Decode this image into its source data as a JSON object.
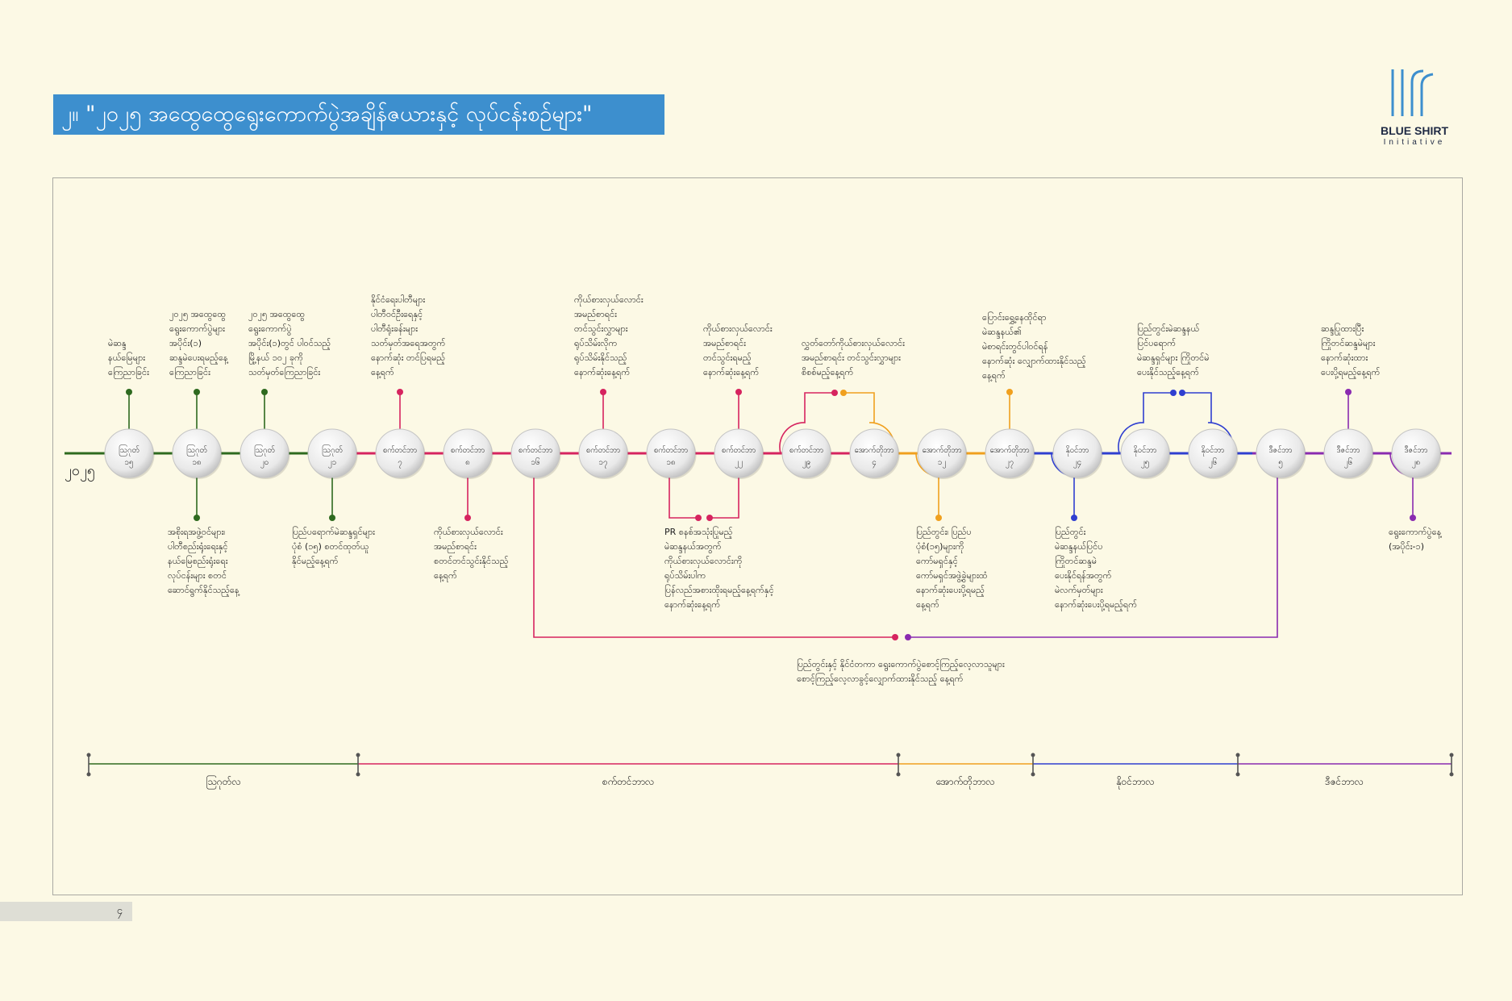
{
  "title": "၂။ \"၂၀၂၅ အထွေထွေရွေးကောက်ပွဲအချိန်ဇယားနှင့် လုပ်ငန်းစဉ်များ\"",
  "logo": {
    "name": "BLUE SHIRT",
    "sub": "Initiative"
  },
  "page_number": "၄",
  "start_label": "၂၀၂၅",
  "colors": {
    "july": "#2e6a1f",
    "august": "#d6245f",
    "september": "#f0a01e",
    "october": "#2f3fd0",
    "december": "#8a2bb0"
  },
  "nodes": [
    {
      "label": "ဩဂုတ်",
      "day": "၁၅",
      "color": "july"
    },
    {
      "label": "ဩဂုတ်",
      "day": "၁၈",
      "color": "july"
    },
    {
      "label": "ဩဂုတ်",
      "day": "၂၀",
      "color": "july"
    },
    {
      "label": "ဩဂုတ်",
      "day": "၂၁",
      "color": "july"
    },
    {
      "label": "စက်တင်ဘာ",
      "day": "၇",
      "color": "august"
    },
    {
      "label": "စက်တင်ဘာ",
      "day": "၈",
      "color": "august"
    },
    {
      "label": "စက်တင်ဘာ",
      "day": "၁၆",
      "color": "august"
    },
    {
      "label": "စက်တင်ဘာ",
      "day": "၁၇",
      "color": "august"
    },
    {
      "label": "စက်တင်ဘာ",
      "day": "၁၈",
      "color": "august"
    },
    {
      "label": "စက်တင်ဘာ",
      "day": "၂၂",
      "color": "august"
    },
    {
      "label": "စက်တင်ဘာ",
      "day": "၂၉",
      "color": "august"
    },
    {
      "label": "အောက်တိုဘာ",
      "day": "၄",
      "color": "september"
    },
    {
      "label": "အောက်တိုဘာ",
      "day": "၁၂",
      "color": "september"
    },
    {
      "label": "အောက်တိုဘာ",
      "day": "၂၇",
      "color": "september"
    },
    {
      "label": "နိုဝင်ဘာ",
      "day": "၂၄",
      "color": "october"
    },
    {
      "label": "နိုဝင်ဘာ",
      "day": "၂၅",
      "color": "october"
    },
    {
      "label": "နိုဝင်ဘာ",
      "day": "၂၆",
      "color": "october"
    },
    {
      "label": "ဒီဇင်ဘာ",
      "day": "၅",
      "color": "december"
    },
    {
      "label": "ဒီဇင်ဘာ",
      "day": "၂၆",
      "color": "december"
    },
    {
      "label": "ဒီဇင်ဘာ",
      "day": "၂၈",
      "color": "december"
    }
  ],
  "annotations": {
    "a1": [
      "မဲဆန္ဒ",
      "နယ်မြေများ",
      "ကြေညာခြင်း"
    ],
    "a2": [
      "၂၀၂၅ အထွေထွေ",
      "ရွေးကောက်ပွဲများ",
      "အပိုင်း(၁)",
      "ဆန္ဒမဲပေးရမည့်နေ့",
      "ကြေညာခြင်း"
    ],
    "a3": [
      "၂၀၂၅ အထွေထွေ",
      "ရွေးကောက်ပွဲ",
      "အပိုင်း(၁)တွင် ပါဝင်သည့်",
      "မြို့နယ် ၁၀၂ ခုကို",
      "သတ်မှတ်ကြေညာခြင်း"
    ],
    "a4": [
      "နိုင်ငံရေးပါတီများ",
      "ပါတီဝင်ဦးရေနှင့်",
      "ပါတီရုံးခန်းများ",
      "သတ်မှတ်အရေအတွက်",
      "နောက်ဆုံး တင်ပြရမည့်",
      "နေ့ရက်"
    ],
    "a5": [
      "ကိုယ်စားလှယ်လောင်း",
      "အမည်စာရင်း",
      "တင်သွင်းလွှာများ",
      "ရုပ်သိမ်းလိုက",
      "ရုပ်သိမ်းနိုင်သည့်",
      "နောက်ဆုံးနေ့ရက်"
    ],
    "a6": [
      "ကိုယ်စားလှယ်လောင်း",
      "အမည်စာရင်း",
      "တင်သွင်းရမည့်",
      "နောက်ဆုံးနေ့ရက်"
    ],
    "a7": [
      "လွှတ်တော်ကိုယ်စားလှယ်လောင်း",
      "အမည်စာရင်း တင်သွင်းလွှာများ",
      "စိစစ်မည့်နေ့ရက်"
    ],
    "a8": [
      "ပြောင်းရွှေ့နေထိုင်ရာ",
      "မဲဆန္ဒနယ်၏",
      "မဲစာရင်းတွင်ပါဝင်ရန်",
      "နောက်ဆုံး လျှောက်ထားနိုင်သည့်",
      "နေ့ရက်"
    ],
    "a9": [
      "ပြည်တွင်းမဲဆန္ဒနယ်",
      "ပြင်ပရောက်",
      "မဲဆန္ဒရှင်များ ကြိုတင်မဲ",
      "ပေးနိုင်သည့်နေ့ရက်"
    ],
    "a10": [
      "ဆန္ဒပြုထားပြီး",
      "ကြိုတင်ဆန္ဒမဲများ",
      "နောက်ဆုံးထား",
      "ပေးပို့ရမည့်နေ့ရက်"
    ],
    "b1": [
      "အစိုးရအဖွဲ့ဝင်များ၊",
      "ပါတီစည်းရုံးရေးနှင့်",
      "နယ်မြေစည်းရုံးရေး",
      "လုပ်ငန်းများ စတင်",
      "ဆောင်ရွက်နိုင်သည့်နေ့"
    ],
    "b2": [
      "ပြည်ပရောက်မဲဆန္ဒရှင်များ",
      "ပုံစံ (၁၅) စတင်ထုတ်ယူ",
      "နိုင်မည့်နေ့ရက်"
    ],
    "b3": [
      "ကိုယ်စားလှယ်လောင်း",
      "အမည်စာရင်း",
      "စတင်တင်သွင်းနိုင်သည့်",
      "နေ့ရက်"
    ],
    "b4": [
      "PR စနစ်အသုံးပြုမည့်",
      "မဲဆန္ဒနယ်အတွက်",
      "ကိုယ်စားလှယ်လောင်းကို",
      "ရုပ်သိမ်းပါက",
      "ပြန်လည်အစားထိုးရမည့်နေ့ရက်နှင့်",
      "နောက်ဆုံးနေ့ရက်"
    ],
    "b5": [
      "ပြည်တွင်း၊ ပြည်ပ",
      "ပုံစံ(၁၅)များကို",
      "ကော်မရှင်နှင့်",
      "ကော်မရှင်အဖွဲ့ခွဲများထံ",
      "နောက်ဆုံးပေးပို့ရမည့်",
      "နေ့ရက်"
    ],
    "b6": [
      "ပြည်တွင်း",
      "မဲဆန္ဒနယ်ပြင်ပ",
      "ကြိုတင်ဆန္ဒမဲ",
      "ပေးနိုင်ရန်အတွက်",
      "မဲလက်မှတ်များ",
      "နောက်ဆုံးပေးပို့ရမည့်ရက်"
    ],
    "b7": [
      "ရွေးကောက်ပွဲနေ့",
      "(အပိုင်း-၁)"
    ],
    "b8": [
      "ပြည်တွင်းနှင့် နိုင်ငံတကာ ရွေးကောက်ပွဲစောင့်ကြည့်လေ့လာသူများ",
      "စောင့်ကြည့်လေ့လာခွင့်လျှောက်ထားနိုင်သည့် နေ့ရက်"
    ]
  },
  "months": [
    "ဩဂုတ်လ",
    "စက်တင်ဘာလ",
    "အောက်တိုဘာလ",
    "နိုဝင်ဘာလ",
    "ဒီဇင်ဘာလ"
  ]
}
